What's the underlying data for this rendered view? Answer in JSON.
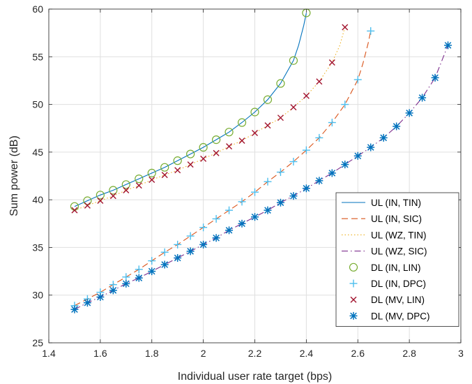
{
  "chart_data": {
    "type": "line",
    "xlabel": "Individual user rate target (bps)",
    "ylabel": "Sum power (dB)",
    "xlim": [
      1.4,
      3.0
    ],
    "ylim": [
      25,
      60
    ],
    "xticks": [
      1.4,
      1.6,
      1.8,
      2.0,
      2.2,
      2.4,
      2.6,
      2.8,
      3.0
    ],
    "xtick_labels": [
      "1.4",
      "1.6",
      "1.8",
      "2",
      "2.2",
      "2.4",
      "2.6",
      "2.8",
      "3"
    ],
    "yticks": [
      25,
      30,
      35,
      40,
      45,
      50,
      55,
      60
    ],
    "ytick_labels": [
      "25",
      "30",
      "35",
      "40",
      "45",
      "50",
      "55",
      "60"
    ],
    "grid": true,
    "legend_position": "bottom-right",
    "series": [
      {
        "name": "UL (IN, TIN)",
        "kind": "line",
        "color": "#0072BD",
        "dash": "solid",
        "x": [
          1.5,
          1.55,
          1.6,
          1.65,
          1.7,
          1.75,
          1.8,
          1.85,
          1.9,
          1.95,
          2.0,
          2.05,
          2.1,
          2.15,
          2.2,
          2.25,
          2.3,
          2.35,
          2.37,
          2.39,
          2.4
        ],
        "y": [
          39.3,
          39.9,
          40.5,
          41.0,
          41.6,
          42.2,
          42.8,
          43.4,
          44.1,
          44.8,
          45.5,
          46.3,
          47.1,
          48.1,
          49.2,
          50.5,
          52.2,
          54.6,
          56.2,
          58.3,
          59.6
        ]
      },
      {
        "name": "UL (IN, SIC)",
        "kind": "line",
        "color": "#D95319",
        "dash": "dashed",
        "x": [
          1.5,
          1.55,
          1.6,
          1.65,
          1.7,
          1.75,
          1.8,
          1.85,
          1.9,
          1.95,
          2.0,
          2.05,
          2.1,
          2.15,
          2.2,
          2.25,
          2.3,
          2.35,
          2.4,
          2.45,
          2.5,
          2.55,
          2.6,
          2.62,
          2.64,
          2.65
        ],
        "y": [
          28.9,
          29.6,
          30.3,
          31.1,
          31.9,
          32.7,
          33.6,
          34.5,
          35.3,
          36.2,
          37.1,
          38.0,
          38.9,
          39.8,
          40.8,
          41.9,
          42.9,
          44.0,
          45.2,
          46.5,
          48.1,
          50.0,
          52.6,
          54.3,
          56.4,
          57.7
        ]
      },
      {
        "name": "UL (WZ, TIN)",
        "kind": "line",
        "color": "#EDB120",
        "dash": "dotted",
        "x": [
          1.5,
          1.55,
          1.6,
          1.65,
          1.7,
          1.75,
          1.8,
          1.85,
          1.9,
          1.95,
          2.0,
          2.05,
          2.1,
          2.15,
          2.2,
          2.25,
          2.3,
          2.35,
          2.4,
          2.45,
          2.5,
          2.53,
          2.55
        ],
        "y": [
          38.9,
          39.4,
          39.9,
          40.4,
          41.0,
          41.5,
          42.1,
          42.6,
          43.1,
          43.7,
          44.3,
          44.9,
          45.6,
          46.2,
          47.0,
          47.8,
          48.6,
          49.7,
          50.9,
          52.4,
          54.4,
          56.2,
          58.1
        ]
      },
      {
        "name": "UL (WZ, SIC)",
        "kind": "line",
        "color": "#7E2F8E",
        "dash": "dashdot",
        "x": [
          1.5,
          1.55,
          1.6,
          1.65,
          1.7,
          1.75,
          1.8,
          1.85,
          1.9,
          1.95,
          2.0,
          2.05,
          2.1,
          2.15,
          2.2,
          2.25,
          2.3,
          2.35,
          2.4,
          2.45,
          2.5,
          2.55,
          2.6,
          2.65,
          2.7,
          2.75,
          2.8,
          2.85,
          2.9,
          2.95
        ],
        "y": [
          28.5,
          29.2,
          29.8,
          30.5,
          31.2,
          31.8,
          32.5,
          33.2,
          33.9,
          34.6,
          35.3,
          36.0,
          36.8,
          37.5,
          38.2,
          38.9,
          39.7,
          40.4,
          41.2,
          42.0,
          42.8,
          43.7,
          44.6,
          45.5,
          46.5,
          47.7,
          49.1,
          50.7,
          52.8,
          56.2
        ]
      },
      {
        "name": "DL (IN, LIN)",
        "kind": "marker",
        "marker": "circle",
        "color": "#77AC30",
        "x": [
          1.5,
          1.55,
          1.6,
          1.65,
          1.7,
          1.75,
          1.8,
          1.85,
          1.9,
          1.95,
          2.0,
          2.05,
          2.1,
          2.15,
          2.2,
          2.25,
          2.3,
          2.35,
          2.4
        ],
        "y": [
          39.3,
          39.9,
          40.5,
          41.0,
          41.6,
          42.2,
          42.8,
          43.4,
          44.1,
          44.8,
          45.5,
          46.3,
          47.1,
          48.1,
          49.2,
          50.5,
          52.2,
          54.6,
          59.6
        ]
      },
      {
        "name": "DL (IN, DPC)",
        "kind": "marker",
        "marker": "plus",
        "color": "#4DBEEE",
        "x": [
          1.5,
          1.55,
          1.6,
          1.65,
          1.7,
          1.75,
          1.8,
          1.85,
          1.9,
          1.95,
          2.0,
          2.05,
          2.1,
          2.15,
          2.2,
          2.25,
          2.3,
          2.35,
          2.4,
          2.45,
          2.5,
          2.55,
          2.6,
          2.65
        ],
        "y": [
          28.9,
          29.6,
          30.3,
          31.1,
          31.9,
          32.7,
          33.6,
          34.5,
          35.3,
          36.2,
          37.1,
          38.0,
          38.9,
          39.8,
          40.8,
          41.9,
          42.9,
          44.0,
          45.2,
          46.5,
          48.1,
          50.0,
          52.6,
          57.7
        ]
      },
      {
        "name": "DL (MV, LIN)",
        "kind": "marker",
        "marker": "x",
        "color": "#A2142F",
        "x": [
          1.5,
          1.55,
          1.6,
          1.65,
          1.7,
          1.75,
          1.8,
          1.85,
          1.9,
          1.95,
          2.0,
          2.05,
          2.1,
          2.15,
          2.2,
          2.25,
          2.3,
          2.35,
          2.4,
          2.45,
          2.5,
          2.55
        ],
        "y": [
          38.9,
          39.4,
          39.9,
          40.4,
          41.0,
          41.5,
          42.1,
          42.6,
          43.1,
          43.7,
          44.3,
          44.9,
          45.6,
          46.2,
          47.0,
          47.8,
          48.6,
          49.7,
          50.9,
          52.4,
          54.4,
          58.1
        ]
      },
      {
        "name": "DL (MV, DPC)",
        "kind": "marker",
        "marker": "asterisk",
        "color": "#0072BD",
        "x": [
          1.5,
          1.55,
          1.6,
          1.65,
          1.7,
          1.75,
          1.8,
          1.85,
          1.9,
          1.95,
          2.0,
          2.05,
          2.1,
          2.15,
          2.2,
          2.25,
          2.3,
          2.35,
          2.4,
          2.45,
          2.5,
          2.55,
          2.6,
          2.65,
          2.7,
          2.75,
          2.8,
          2.85,
          2.9,
          2.95
        ],
        "y": [
          28.5,
          29.2,
          29.8,
          30.5,
          31.2,
          31.8,
          32.5,
          33.2,
          33.9,
          34.6,
          35.3,
          36.0,
          36.8,
          37.5,
          38.2,
          38.9,
          39.7,
          40.4,
          41.2,
          42.0,
          42.8,
          43.7,
          44.6,
          45.5,
          46.5,
          47.7,
          49.1,
          50.7,
          52.8,
          56.2
        ]
      }
    ]
  }
}
